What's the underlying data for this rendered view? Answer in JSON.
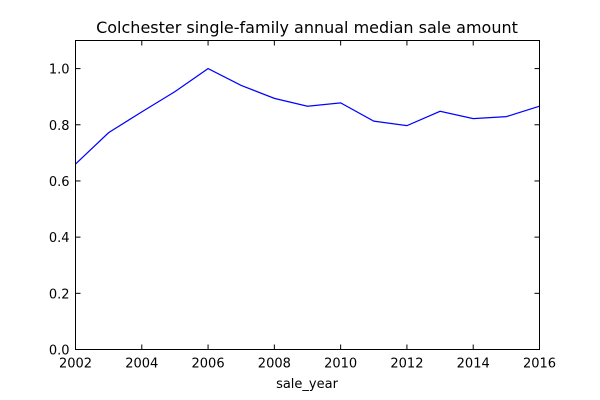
{
  "chart_data": {
    "type": "line",
    "title": "Colchester single-family annual median sale amount",
    "xlabel": "sale_year",
    "ylabel": "",
    "xlim": [
      2002,
      2016
    ],
    "ylim": [
      0.0,
      1.1
    ],
    "xticks": [
      2002,
      2004,
      2006,
      2008,
      2010,
      2012,
      2014,
      2016
    ],
    "xtick_labels": [
      "2002",
      "2004",
      "2006",
      "2008",
      "2010",
      "2012",
      "2014",
      "2016"
    ],
    "yticks": [
      0.0,
      0.2,
      0.4,
      0.6,
      0.8,
      1.0
    ],
    "ytick_labels": [
      "0.0",
      "0.2",
      "0.4",
      "0.6",
      "0.8",
      "1.0"
    ],
    "grid": false,
    "line_color": "#0000ff",
    "series": [
      {
        "x": [
          2002,
          2003,
          2004,
          2005,
          2006,
          2007,
          2008,
          2009,
          2010,
          2011,
          2012,
          2013,
          2014,
          2015,
          2016
        ],
        "values": [
          0.66,
          0.772,
          0.846,
          0.918,
          1.0,
          0.94,
          0.894,
          0.866,
          0.878,
          0.813,
          0.797,
          0.848,
          0.822,
          0.829,
          0.866
        ]
      }
    ]
  }
}
